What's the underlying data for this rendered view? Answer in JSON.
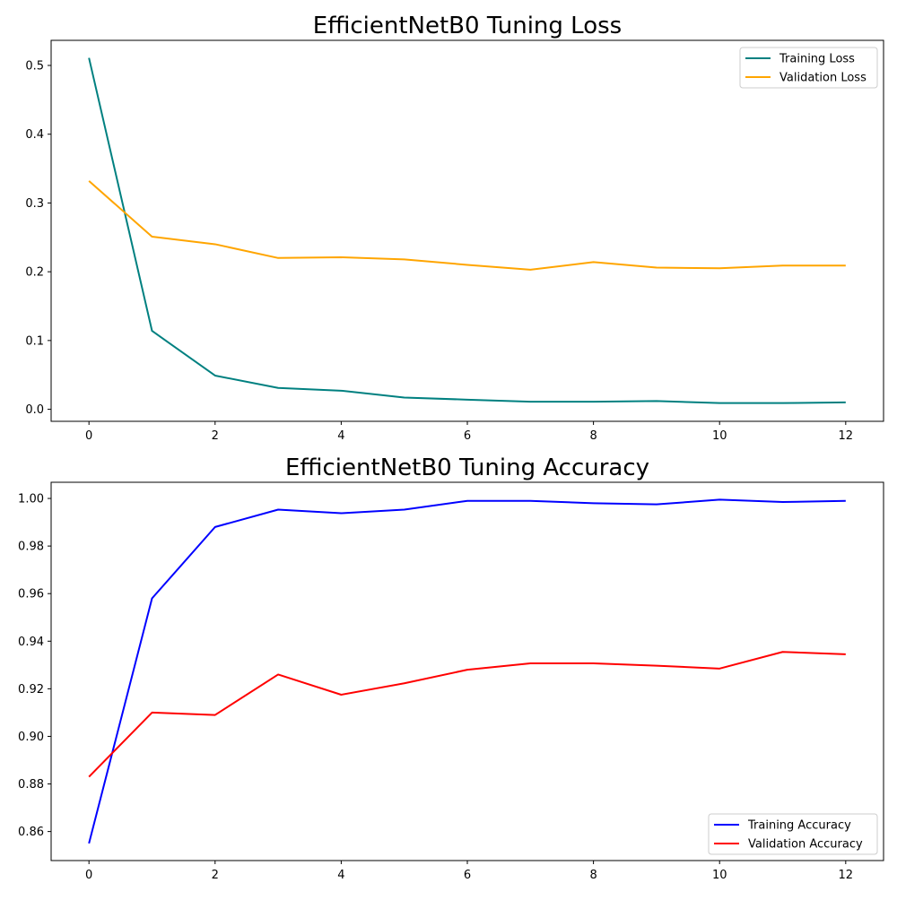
{
  "chart_data": [
    {
      "type": "line",
      "title": "EfficientNetB0 Tuning Loss",
      "xlabel": "",
      "ylabel": "",
      "x": [
        0,
        1,
        2,
        3,
        4,
        5,
        6,
        7,
        8,
        9,
        10,
        11,
        12
      ],
      "xlim": [
        -0.6,
        12.6
      ],
      "ylim": [
        -0.0175,
        0.5365
      ],
      "xticks": [
        0,
        2,
        4,
        6,
        8,
        10,
        12
      ],
      "yticks": [
        0.0,
        0.1,
        0.2,
        0.3,
        0.4,
        0.5
      ],
      "xtick_labels": [
        "0",
        "2",
        "4",
        "6",
        "8",
        "10",
        "12"
      ],
      "ytick_labels": [
        "0.0",
        "0.1",
        "0.2",
        "0.3",
        "0.4",
        "0.5"
      ],
      "grid": false,
      "legend_position": "upper right",
      "series": [
        {
          "name": "Training Loss",
          "color": "#008080",
          "values": [
            0.511,
            0.114,
            0.049,
            0.031,
            0.027,
            0.017,
            0.014,
            0.011,
            0.011,
            0.012,
            0.009,
            0.009,
            0.01
          ]
        },
        {
          "name": "Validation Loss",
          "color": "#FFA500",
          "values": [
            0.332,
            0.251,
            0.24,
            0.22,
            0.221,
            0.218,
            0.21,
            0.203,
            0.214,
            0.206,
            0.205,
            0.209,
            0.209
          ]
        }
      ]
    },
    {
      "type": "line",
      "title": "EfficientNetB0 Tuning Accuracy",
      "xlabel": "",
      "ylabel": "",
      "x": [
        0,
        1,
        2,
        3,
        4,
        5,
        6,
        7,
        8,
        9,
        10,
        11,
        12
      ],
      "xlim": [
        -0.6,
        12.6
      ],
      "ylim": [
        0.8478,
        1.0068
      ],
      "xticks": [
        0,
        2,
        4,
        6,
        8,
        10,
        12
      ],
      "yticks": [
        0.86,
        0.88,
        0.9,
        0.92,
        0.94,
        0.96,
        0.98,
        1.0
      ],
      "xtick_labels": [
        "0",
        "2",
        "4",
        "6",
        "8",
        "10",
        "12"
      ],
      "ytick_labels": [
        "0.86",
        "0.88",
        "0.90",
        "0.92",
        "0.94",
        "0.96",
        "0.98",
        "1.00"
      ],
      "grid": false,
      "legend_position": "lower right",
      "series": [
        {
          "name": "Training Accuracy",
          "color": "#0000FF",
          "values": [
            0.855,
            0.958,
            0.988,
            0.9953,
            0.9938,
            0.9953,
            0.999,
            0.999,
            0.998,
            0.9975,
            0.9995,
            0.9985,
            0.999
          ]
        },
        {
          "name": "Validation Accuracy",
          "color": "#FF0000",
          "values": [
            0.883,
            0.91,
            0.909,
            0.926,
            0.9175,
            0.9223,
            0.928,
            0.9307,
            0.9307,
            0.9297,
            0.9285,
            0.9355,
            0.9345
          ]
        }
      ]
    }
  ]
}
